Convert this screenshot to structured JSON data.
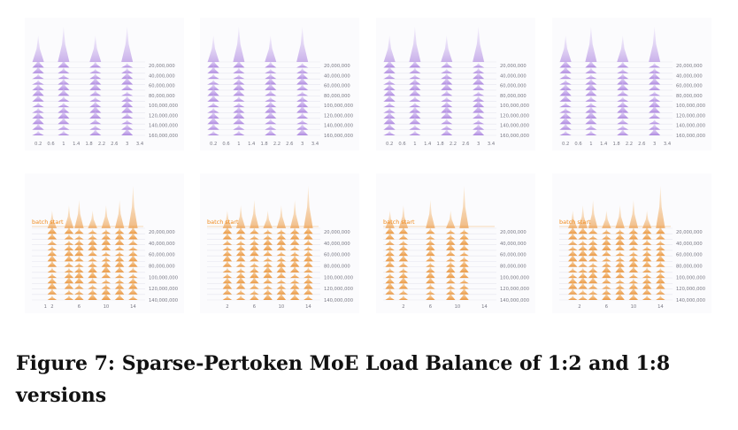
{
  "figure": {
    "caption": "Figure 7: Sparse-Pertoken MoE Load Balance of 1:2 and 1:8 versions"
  },
  "colors": {
    "purple": "#9b6bd8",
    "purple_light": "#d8c6f5",
    "orange": "#e67e12",
    "orange_light": "#f8c27a",
    "batch_start": "#f08a1c"
  },
  "chart_data": [
    {
      "type": "ridgeline",
      "row": "top",
      "series_color": "purple",
      "x_ticks": [
        "0.2",
        "0.6",
        "1",
        "1.4",
        "1.8",
        "2.2",
        "2.6",
        "3",
        "3.4"
      ],
      "y_ticks": [
        "20,000,000",
        "40,000,000",
        "60,000,000",
        "80,000,000",
        "100,000,000",
        "120,000,000",
        "140,000,000",
        "160,000,000"
      ],
      "peaks_x": [
        0.2,
        1,
        2,
        3
      ]
    },
    {
      "type": "ridgeline",
      "row": "top",
      "series_color": "purple",
      "x_ticks": [
        "0.2",
        "0.6",
        "1",
        "1.4",
        "1.8",
        "2.2",
        "2.6",
        "3",
        "3.4"
      ],
      "y_ticks": [
        "20,000,000",
        "40,000,000",
        "60,000,000",
        "80,000,000",
        "100,000,000",
        "120,000,000",
        "140,000,000",
        "160,000,000"
      ],
      "peaks_x": [
        0.2,
        1,
        2,
        3
      ]
    },
    {
      "type": "ridgeline",
      "row": "top",
      "series_color": "purple",
      "x_ticks": [
        "0.2",
        "0.6",
        "1",
        "1.4",
        "1.8",
        "2.2",
        "2.6",
        "3",
        "3.4"
      ],
      "y_ticks": [
        "20,000,000",
        "40,000,000",
        "60,000,000",
        "80,000,000",
        "100,000,000",
        "120,000,000",
        "140,000,000",
        "160,000,000"
      ],
      "peaks_x": [
        0.2,
        1,
        2,
        3
      ]
    },
    {
      "type": "ridgeline",
      "row": "top",
      "series_color": "purple",
      "x_ticks": [
        "0.2",
        "0.6",
        "1",
        "1.4",
        "1.8",
        "2.2",
        "2.6",
        "3",
        "3.4"
      ],
      "y_ticks": [
        "20,000,000",
        "40,000,000",
        "60,000,000",
        "80,000,000",
        "100,000,000",
        "120,000,000",
        "140,000,000",
        "160,000,000"
      ],
      "peaks_x": [
        0.2,
        1,
        2,
        3
      ]
    },
    {
      "type": "ridgeline",
      "row": "bottom",
      "series_color": "orange",
      "annotation": "batch start",
      "x_ticks": [
        "1",
        "2",
        "6",
        "10",
        "14"
      ],
      "y_ticks": [
        "20,000,000",
        "40,000,000",
        "60,000,000",
        "80,000,000",
        "100,000,000",
        "120,000,000",
        "140,000,000"
      ],
      "peaks_x": [
        2,
        4.5,
        6,
        8,
        10,
        12,
        14
      ]
    },
    {
      "type": "ridgeline",
      "row": "bottom",
      "series_color": "orange",
      "annotation": "batch start",
      "x_ticks": [
        "2",
        "6",
        "10",
        "14"
      ],
      "y_ticks": [
        "20,000,000",
        "40,000,000",
        "60,000,000",
        "80,000,000",
        "100,000,000",
        "120,000,000",
        "140,000,000"
      ],
      "peaks_x": [
        2,
        4,
        6,
        8,
        10,
        12,
        14
      ]
    },
    {
      "type": "ridgeline",
      "row": "bottom",
      "series_color": "orange",
      "annotation": "batch start",
      "x_ticks": [
        "2",
        "6",
        "10",
        "14"
      ],
      "y_ticks": [
        "20,000,000",
        "40,000,000",
        "60,000,000",
        "80,000,000",
        "100,000,000",
        "120,000,000",
        "140,000,000"
      ],
      "peaks_x": [
        0,
        2,
        6,
        9,
        11
      ]
    },
    {
      "type": "ridgeline",
      "row": "bottom",
      "series_color": "orange",
      "annotation": "batch start",
      "x_ticks": [
        "2",
        "6",
        "10",
        "14"
      ],
      "y_ticks": [
        "20,000,000",
        "40,000,000",
        "60,000,000",
        "80,000,000",
        "100,000,000",
        "120,000,000",
        "140,000,000"
      ],
      "peaks_x": [
        1,
        2.5,
        4,
        6,
        8,
        10,
        12,
        14
      ]
    }
  ]
}
